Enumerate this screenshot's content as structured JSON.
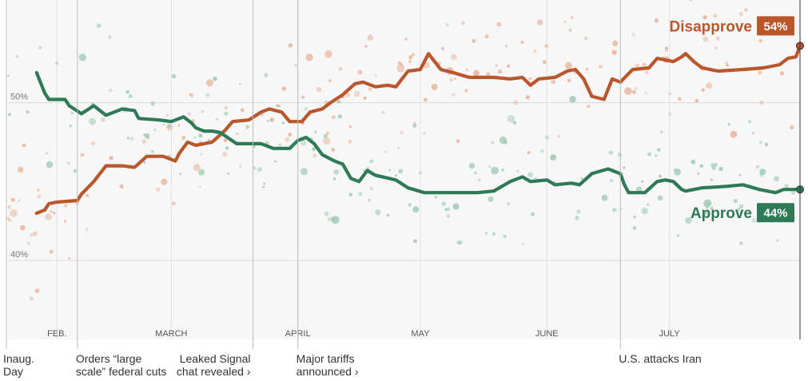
{
  "chart_data": {
    "type": "line",
    "title": "",
    "xlabel": "",
    "ylabel": "",
    "x_domain": [
      0,
      194
    ],
    "ylim": [
      35,
      56.5
    ],
    "y_ticks": [
      {
        "value": 50,
        "label": "50%"
      },
      {
        "value": 40,
        "label": "40%"
      }
    ],
    "x_ticks": [
      {
        "day": 12,
        "label": "FEB."
      },
      {
        "day": 40,
        "label": "MARCH"
      },
      {
        "day": 71,
        "label": "APRIL"
      },
      {
        "day": 101,
        "label": "MAY"
      },
      {
        "day": 132,
        "label": "JUNE"
      },
      {
        "day": 162,
        "label": "JULY"
      }
    ],
    "series": [
      {
        "name": "Disapprove",
        "end_label": "54%",
        "color": "#b9562b",
        "points": [
          [
            7,
            43
          ],
          [
            9,
            43.2
          ],
          [
            10,
            43.6
          ],
          [
            12,
            43.7
          ],
          [
            17,
            43.8
          ],
          [
            18,
            44.2
          ],
          [
            21,
            45
          ],
          [
            24,
            46
          ],
          [
            28,
            46
          ],
          [
            31,
            45.9
          ],
          [
            34,
            46.6
          ],
          [
            38,
            46.6
          ],
          [
            41,
            46.3
          ],
          [
            42,
            46.8
          ],
          [
            44,
            47.5
          ],
          [
            46,
            47.3
          ],
          [
            50,
            47.5
          ],
          [
            53,
            48.2
          ],
          [
            55,
            48.8
          ],
          [
            59,
            48.9
          ],
          [
            62,
            49.4
          ],
          [
            64,
            49.6
          ],
          [
            67,
            49.4
          ],
          [
            69,
            48.8
          ],
          [
            72,
            48.8
          ],
          [
            74,
            49.4
          ],
          [
            77,
            49.6
          ],
          [
            79,
            50.0
          ],
          [
            82,
            50.5
          ],
          [
            85,
            51.2
          ],
          [
            87,
            51.3
          ],
          [
            90,
            51
          ],
          [
            93,
            51.1
          ],
          [
            95,
            51
          ],
          [
            98,
            52.0
          ],
          [
            101,
            52.1
          ],
          [
            103,
            53.1
          ],
          [
            106,
            52.1
          ],
          [
            109,
            51.9
          ],
          [
            113,
            51.6
          ],
          [
            116,
            51.6
          ],
          [
            119,
            51.6
          ],
          [
            123,
            51.5
          ],
          [
            126,
            51.6
          ],
          [
            128,
            51.1
          ],
          [
            130,
            51.5
          ],
          [
            134,
            51.6
          ],
          [
            137,
            52
          ],
          [
            139,
            52.1
          ],
          [
            141,
            51.5
          ],
          [
            143,
            50.4
          ],
          [
            146,
            50.2
          ],
          [
            148,
            51.5
          ],
          [
            150,
            51.3
          ],
          [
            153,
            52.1
          ],
          [
            157,
            52.2
          ],
          [
            159,
            52.8
          ],
          [
            163,
            52.6
          ],
          [
            165,
            52.9
          ],
          [
            166,
            53.1
          ],
          [
            168,
            52.6
          ],
          [
            170,
            52.2
          ],
          [
            174,
            52
          ],
          [
            180,
            52.1
          ],
          [
            185,
            52.2
          ],
          [
            189,
            52.4
          ],
          [
            191,
            52.8
          ],
          [
            193,
            52.9
          ],
          [
            194,
            53.6
          ]
        ]
      },
      {
        "name": "Approve",
        "end_label": "44%",
        "color": "#2e7a56",
        "points": [
          [
            7,
            51.9
          ],
          [
            9,
            50.6
          ],
          [
            10,
            50.2
          ],
          [
            14,
            50.2
          ],
          [
            15,
            49.8
          ],
          [
            18,
            49.3
          ],
          [
            21,
            49.8
          ],
          [
            24,
            49.2
          ],
          [
            28,
            49.6
          ],
          [
            31,
            49.5
          ],
          [
            32,
            49.0
          ],
          [
            37,
            48.9
          ],
          [
            40,
            48.8
          ],
          [
            43,
            49.1
          ],
          [
            45,
            48.7
          ],
          [
            46,
            48.4
          ],
          [
            48,
            48.2
          ],
          [
            50,
            48.2
          ],
          [
            52,
            48.1
          ],
          [
            56,
            47.4
          ],
          [
            62,
            47.4
          ],
          [
            65,
            47.1
          ],
          [
            69,
            47.1
          ],
          [
            71,
            47.6
          ],
          [
            73,
            47.8
          ],
          [
            75,
            47.4
          ],
          [
            77,
            46.7
          ],
          [
            80,
            46.3
          ],
          [
            82,
            46.1
          ],
          [
            84,
            45.2
          ],
          [
            86,
            45.0
          ],
          [
            88,
            45.7
          ],
          [
            90,
            45.4
          ],
          [
            95,
            45.1
          ],
          [
            98,
            44.6
          ],
          [
            102,
            44.3
          ],
          [
            106,
            44.3
          ],
          [
            111,
            44.3
          ],
          [
            115,
            44.3
          ],
          [
            119,
            44.4
          ],
          [
            123,
            45.0
          ],
          [
            126,
            45.3
          ],
          [
            128,
            45.0
          ],
          [
            132,
            45.1
          ],
          [
            134,
            44.8
          ],
          [
            138,
            44.9
          ],
          [
            140,
            44.8
          ],
          [
            143,
            45.5
          ],
          [
            147,
            45.8
          ],
          [
            150,
            45.5
          ],
          [
            151,
            44.8
          ],
          [
            152,
            44.3
          ],
          [
            156,
            44.3
          ],
          [
            159,
            45.0
          ],
          [
            161,
            45.1
          ],
          [
            163,
            45.0
          ],
          [
            165,
            44.5
          ],
          [
            166,
            44.4
          ],
          [
            170,
            44.6
          ],
          [
            176,
            44.7
          ],
          [
            180,
            44.8
          ],
          [
            184,
            44.5
          ],
          [
            186,
            44.4
          ],
          [
            188,
            44.3
          ],
          [
            190,
            44.5
          ],
          [
            194,
            44.5
          ]
        ]
      }
    ],
    "annotations": [
      {
        "day": 0,
        "label_lines": [
          "Inaug.",
          "Day"
        ],
        "arrow": false
      },
      {
        "day": 17,
        "label_lines": [
          "Orders “large",
          "scale” federal cuts"
        ],
        "arrow": false
      },
      {
        "day": 60,
        "label_lines": [
          "Leaked Signal",
          "chat revealed ›"
        ],
        "arrow": true
      },
      {
        "day": 71,
        "label_lines": [
          "Major tariffs",
          "announced ›"
        ],
        "arrow": true
      },
      {
        "day": 150,
        "label_lines": [
          "U.S. attacks Iran"
        ],
        "arrow": false
      }
    ]
  }
}
